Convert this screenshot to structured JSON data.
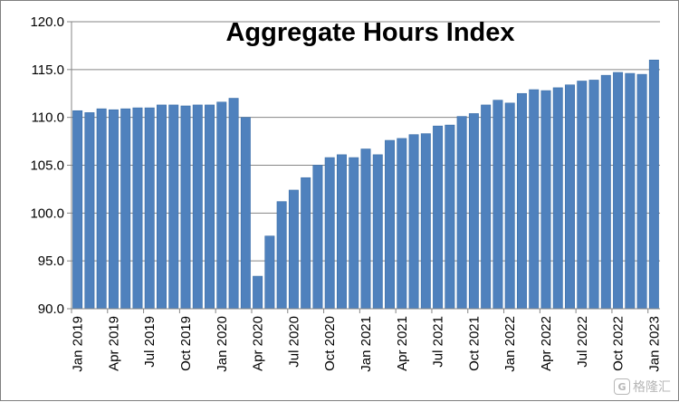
{
  "chart_data": {
    "type": "bar",
    "title": "Aggregate Hours Index",
    "xlabel": "",
    "ylabel": "",
    "ylim": [
      90.0,
      120.0
    ],
    "yticks": [
      "90.0",
      "95.0",
      "100.0",
      "105.0",
      "110.0",
      "115.0",
      "120.0"
    ],
    "grid": true,
    "legend": "none",
    "categories": [
      "Jan 2019",
      "Feb 2019",
      "Mar 2019",
      "Apr 2019",
      "May 2019",
      "Jun 2019",
      "Jul 2019",
      "Aug 2019",
      "Sep 2019",
      "Oct 2019",
      "Nov 2019",
      "Dec 2019",
      "Jan 2020",
      "Feb 2020",
      "Mar 2020",
      "Apr 2020",
      "May 2020",
      "Jun 2020",
      "Jul 2020",
      "Aug 2020",
      "Sep 2020",
      "Oct 2020",
      "Nov 2020",
      "Dec 2020",
      "Jan 2021",
      "Feb 2021",
      "Mar 2021",
      "Apr 2021",
      "May 2021",
      "Jun 2021",
      "Jul 2021",
      "Aug 2021",
      "Sep 2021",
      "Oct 2021",
      "Nov 2021",
      "Dec 2021",
      "Jan 2022",
      "Feb 2022",
      "Mar 2022",
      "Apr 2022",
      "May 2022",
      "Jun 2022",
      "Jul 2022",
      "Aug 2022",
      "Sep 2022",
      "Oct 2022",
      "Nov 2022",
      "Dec 2022",
      "Jan 2023"
    ],
    "xtick_labels": [
      "Jan 2019",
      "Apr 2019",
      "Jul 2019",
      "Oct 2019",
      "Jan 2020",
      "Apr 2020",
      "Jul 2020",
      "Oct 2020",
      "Jan 2021",
      "Apr 2021",
      "Jul 2021",
      "Oct 2021",
      "Jan 2022",
      "Apr 2022",
      "Jul 2022",
      "Oct 2022",
      "Jan 2023"
    ],
    "values": [
      110.7,
      110.5,
      110.9,
      110.8,
      110.9,
      111.0,
      111.0,
      111.3,
      111.3,
      111.2,
      111.3,
      111.3,
      111.6,
      112.0,
      110.0,
      93.4,
      97.6,
      101.2,
      102.4,
      103.7,
      105.0,
      105.8,
      106.1,
      105.8,
      106.7,
      106.1,
      107.6,
      107.8,
      108.2,
      108.3,
      109.1,
      109.2,
      110.1,
      110.4,
      111.3,
      111.8,
      111.5,
      112.5,
      112.9,
      112.8,
      113.1,
      113.4,
      113.8,
      113.9,
      114.4,
      114.7,
      114.6,
      114.5,
      116.0
    ],
    "colors": {
      "bar": "#4f81bd",
      "bar_edge": "#3a6ea8",
      "gridline": "#868686",
      "axis": "#868686"
    }
  },
  "watermark": {
    "logo_glyph": "G",
    "text": "格隆汇"
  }
}
